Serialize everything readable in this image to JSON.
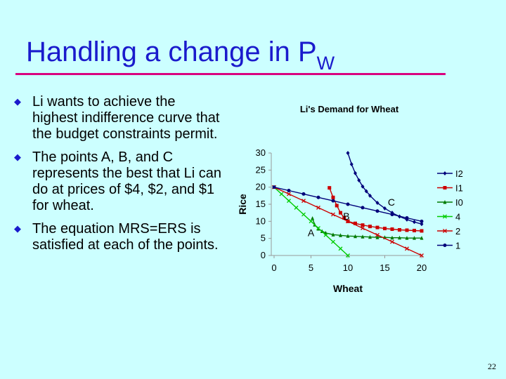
{
  "slide": {
    "title_main": "Handling a change in P",
    "title_sub": "W",
    "bullets": [
      "Li wants to achieve the highest indifference curve that the budget constraints permit.",
      "The points A, B, and C represents the best that Li can do at prices of $4, $2, and $1 for wheat.",
      "The equation MRS=ERS is satisfied at each of the points."
    ],
    "page_number": "22"
  },
  "chart_data": {
    "type": "line",
    "title": "Li's Demand for Wheat",
    "xlabel": "Wheat",
    "ylabel": "Rice",
    "xlim": [
      0,
      20
    ],
    "ylim": [
      0,
      30
    ],
    "xticks": [
      0,
      5,
      10,
      15,
      20
    ],
    "yticks": [
      0,
      5,
      10,
      15,
      20,
      25,
      30
    ],
    "grid": false,
    "legend_position": "right",
    "series": [
      {
        "name": "I2",
        "color": "#00007a",
        "marker": "diamond",
        "points": [
          [
            10,
            30
          ],
          [
            10.5,
            26.7
          ],
          [
            11,
            24.1
          ],
          [
            11.5,
            22
          ],
          [
            12,
            20.2
          ],
          [
            12.5,
            18.8
          ],
          [
            13,
            17.5
          ],
          [
            14,
            15.4
          ],
          [
            15,
            13.8
          ],
          [
            16,
            12.5
          ],
          [
            17,
            11.4
          ],
          [
            18,
            10.5
          ],
          [
            19,
            9.8
          ],
          [
            20,
            9.2
          ]
        ]
      },
      {
        "name": "I1",
        "color": "#cc0000",
        "marker": "square",
        "points": [
          [
            7.5,
            19.8
          ],
          [
            8,
            17
          ],
          [
            8.5,
            14.6
          ],
          [
            9,
            12.5
          ],
          [
            9.5,
            11
          ],
          [
            10,
            10
          ],
          [
            11,
            9.4
          ],
          [
            12,
            8.9
          ],
          [
            13,
            8.5
          ],
          [
            14,
            8.2
          ],
          [
            15,
            7.9
          ],
          [
            16,
            7.7
          ],
          [
            17,
            7.5
          ],
          [
            18,
            7.4
          ],
          [
            19,
            7.3
          ],
          [
            20,
            7.2
          ]
        ]
      },
      {
        "name": "I0",
        "color": "#007a00",
        "marker": "triangle",
        "points": [
          [
            5.2,
            10.9
          ],
          [
            5.5,
            9
          ],
          [
            6,
            7.8
          ],
          [
            6.5,
            7.1
          ],
          [
            7,
            6.6
          ],
          [
            8,
            6.1
          ],
          [
            9,
            5.9
          ],
          [
            10,
            5.7
          ],
          [
            11,
            5.6
          ],
          [
            12,
            5.5
          ],
          [
            13,
            5.4
          ],
          [
            14,
            5.3
          ],
          [
            15,
            5.3
          ],
          [
            16,
            5.2
          ],
          [
            17,
            5.2
          ],
          [
            18,
            5.1
          ],
          [
            19,
            5.1
          ],
          [
            20,
            5.1
          ]
        ]
      },
      {
        "name": "4",
        "color": "#00cc00",
        "marker": "x",
        "points": [
          [
            0,
            20
          ],
          [
            1,
            18
          ],
          [
            2,
            16
          ],
          [
            3,
            14
          ],
          [
            4,
            12
          ],
          [
            5,
            10
          ],
          [
            6,
            8
          ],
          [
            7,
            6
          ],
          [
            8,
            4
          ],
          [
            9,
            2
          ],
          [
            10,
            0
          ]
        ]
      },
      {
        "name": "2",
        "color": "#cc0000",
        "marker": "x",
        "points": [
          [
            0,
            20
          ],
          [
            2,
            18
          ],
          [
            4,
            16
          ],
          [
            6,
            14
          ],
          [
            8,
            12
          ],
          [
            10,
            10
          ],
          [
            12,
            8
          ],
          [
            14,
            6
          ],
          [
            16,
            4
          ],
          [
            18,
            2
          ],
          [
            20,
            0
          ]
        ]
      },
      {
        "name": "1",
        "color": "#00007a",
        "marker": "circle",
        "points": [
          [
            0,
            20
          ],
          [
            2,
            19
          ],
          [
            4,
            18
          ],
          [
            6,
            17
          ],
          [
            8,
            16
          ],
          [
            10,
            15
          ],
          [
            12,
            14
          ],
          [
            14,
            13
          ],
          [
            16,
            12
          ],
          [
            18,
            11
          ],
          [
            20,
            10
          ]
        ]
      }
    ],
    "annotations": [
      {
        "text": "A",
        "x": 5.0,
        "y": 5.6
      },
      {
        "text": "B",
        "x": 9.8,
        "y": 10.5
      },
      {
        "text": "C",
        "x": 15.9,
        "y": 14.6
      }
    ]
  }
}
